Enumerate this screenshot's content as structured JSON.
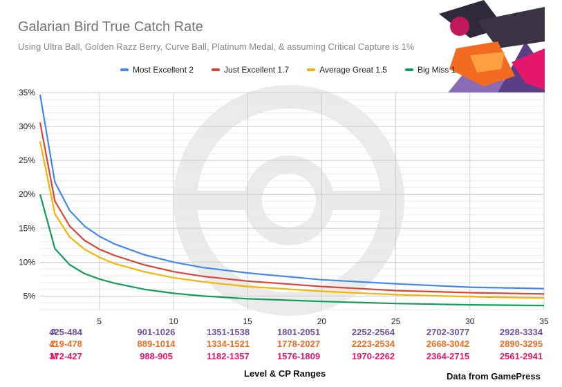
{
  "chart_data": {
    "type": "line",
    "title": "Galarian Bird True Catch Rate",
    "subtitle": "Using Ultra Ball, Golden Razz Berry, Curve Ball, Platinum Medal, & assuming Critical Capture  is 1%",
    "xlabel": "Level & CP Ranges",
    "ylabel": "",
    "xlim": [
      1,
      35
    ],
    "ylim": [
      3,
      35
    ],
    "xticks": [
      5,
      10,
      15,
      20,
      25,
      30,
      35
    ],
    "yticks": [
      "5%",
      "10%",
      "15%",
      "20%",
      "25%",
      "30%",
      "35%"
    ],
    "ytick_values": [
      5,
      10,
      15,
      20,
      25,
      30,
      35
    ],
    "grid": true,
    "legend_position": "top",
    "x": [
      1,
      2,
      3,
      4,
      5,
      6,
      8,
      10,
      12,
      15,
      20,
      25,
      30,
      35
    ],
    "series": [
      {
        "name": "Most Excellent 2",
        "color": "#4285f4",
        "values": [
          34.7,
          21.8,
          17.6,
          15.3,
          13.8,
          12.7,
          11.1,
          10.0,
          9.2,
          8.4,
          7.4,
          6.8,
          6.3,
          6.1
        ]
      },
      {
        "name": "Just Excellent 1.7",
        "color": "#db4437",
        "values": [
          30.6,
          19.0,
          15.3,
          13.2,
          11.9,
          11.0,
          9.6,
          8.6,
          7.9,
          7.2,
          6.4,
          5.8,
          5.5,
          5.3
        ]
      },
      {
        "name": "Average Great 1.5",
        "color": "#f4b400",
        "values": [
          27.8,
          17.1,
          13.7,
          11.9,
          10.7,
          9.8,
          8.6,
          7.7,
          7.1,
          6.4,
          5.7,
          5.2,
          4.9,
          4.7
        ]
      },
      {
        "name": "Big Miss 1",
        "color": "#0f9d58",
        "values": [
          20.0,
          12.0,
          9.6,
          8.3,
          7.5,
          6.9,
          6.0,
          5.4,
          5.0,
          4.6,
          4.2,
          3.9,
          3.7,
          3.6
        ]
      }
    ],
    "cp_rows": [
      {
        "prefix": "A",
        "color": "#6a52a3",
        "ranges": [
          "425-484",
          "901-1026",
          "1351-1538",
          "1801-2051",
          "2252-2564",
          "2702-3077",
          "2928-3334"
        ]
      },
      {
        "prefix": "Z",
        "color": "#f26b21",
        "ranges": [
          "419-478",
          "889-1014",
          "1334-1521",
          "1778-2027",
          "2223-2534",
          "2668-3042",
          "2890-3295"
        ]
      },
      {
        "prefix": "M",
        "color": "#e5176b",
        "ranges": [
          "372-427",
          "988-905",
          "1182-1357",
          "1576-1809",
          "1970-2262",
          "2364-2715",
          "2561-2941"
        ]
      }
    ],
    "source": "Data from GamePress"
  }
}
